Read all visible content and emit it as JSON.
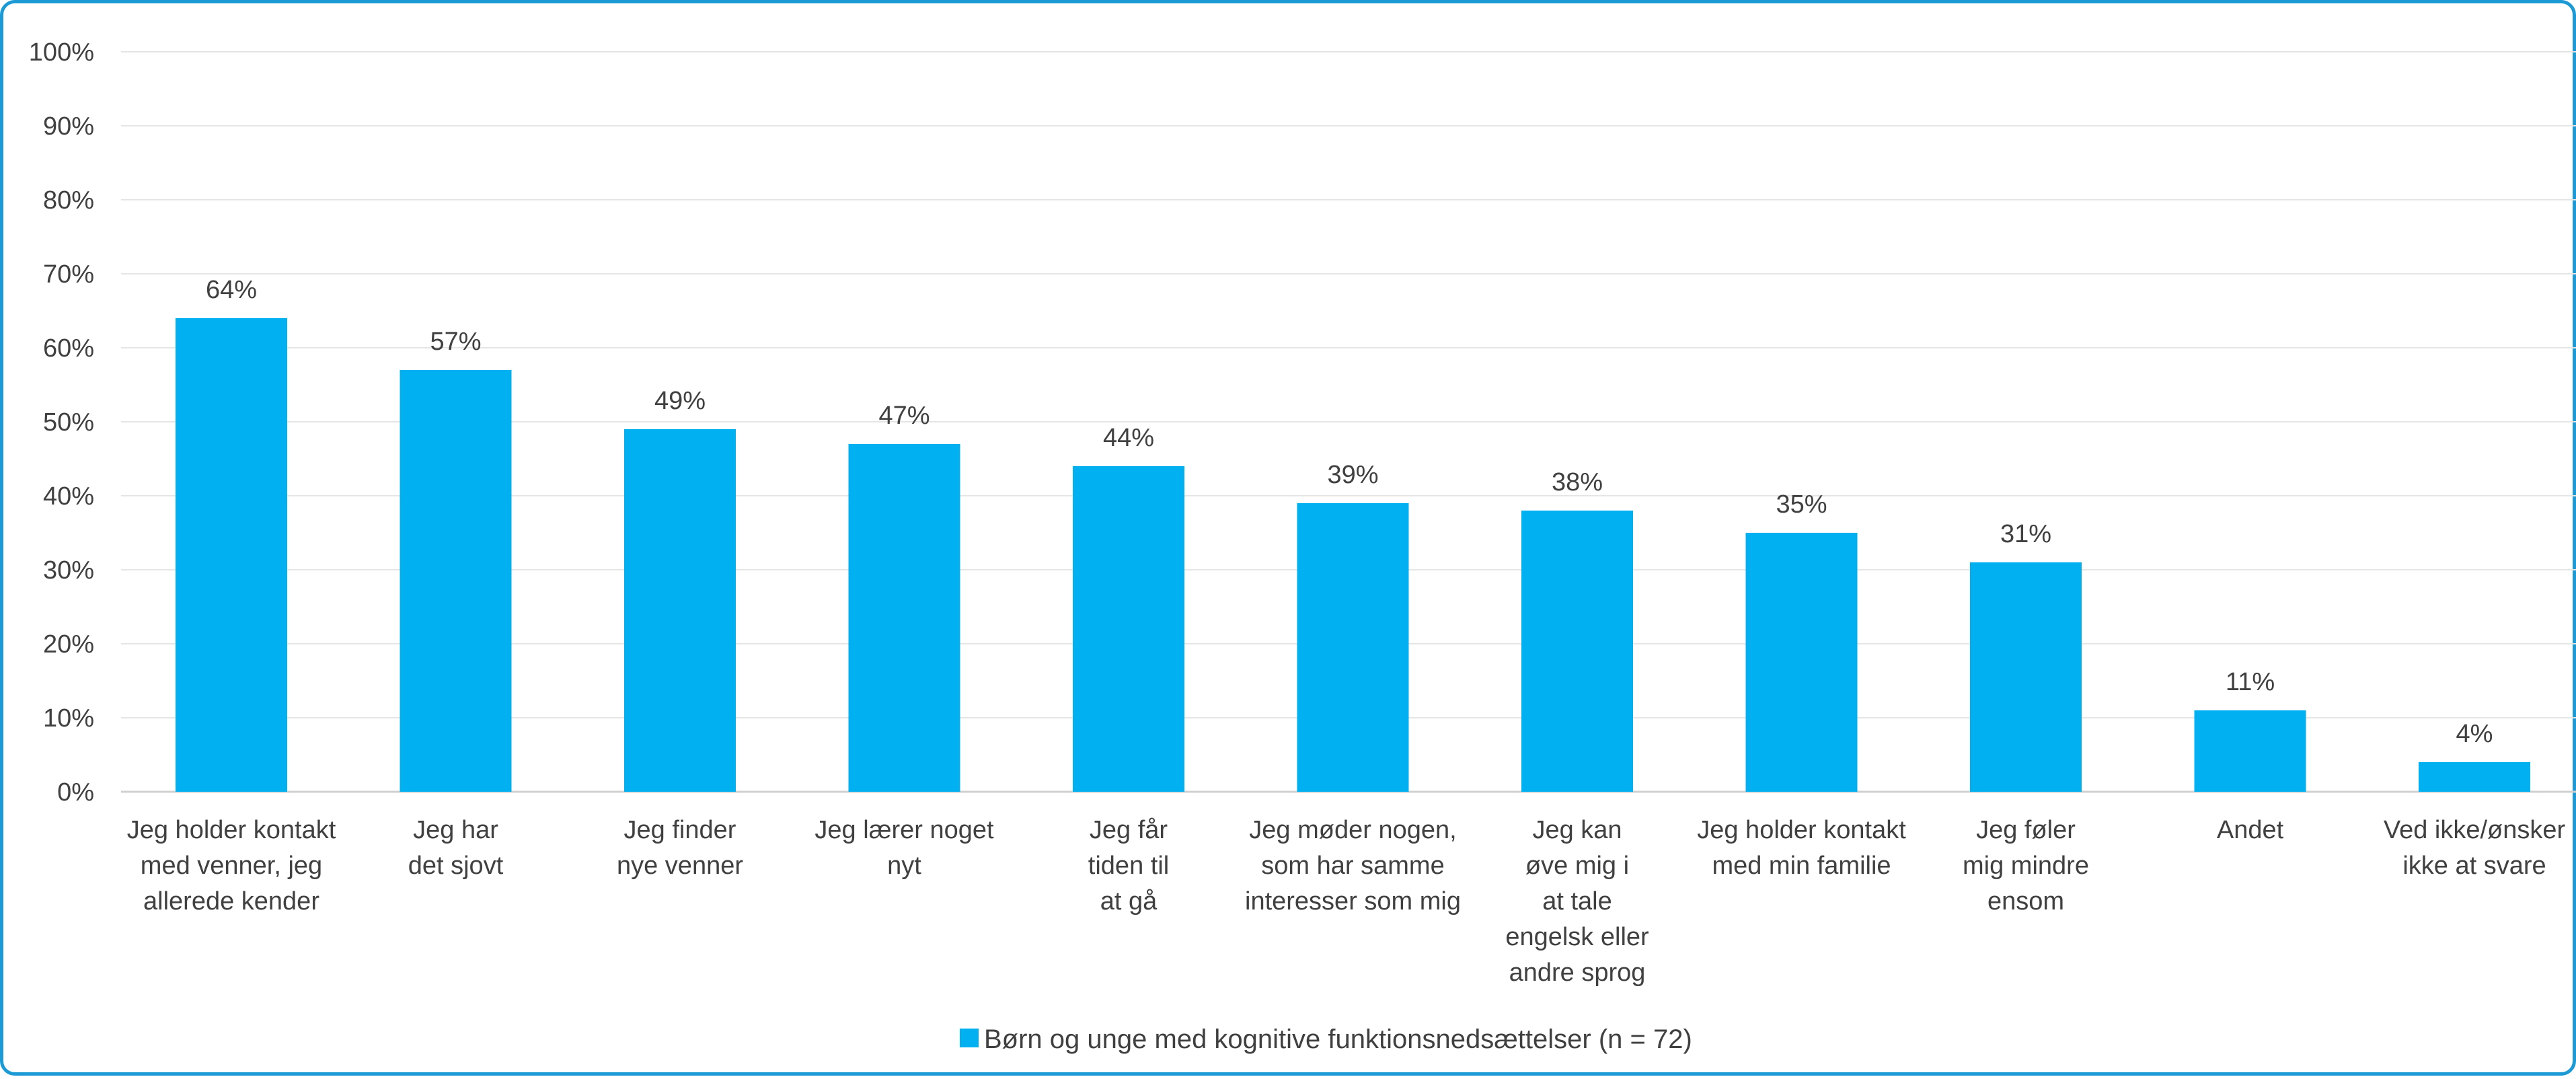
{
  "chart_data": {
    "type": "bar",
    "categories": [
      [
        "Jeg holder kontakt",
        "med venner, jeg",
        "allerede kender"
      ],
      [
        "Jeg har",
        "det sjovt"
      ],
      [
        "Jeg finder",
        "nye venner"
      ],
      [
        "Jeg lærer noget",
        "nyt"
      ],
      [
        "Jeg får",
        "tiden til",
        "at gå"
      ],
      [
        "Jeg møder nogen,",
        "som har samme",
        "interesser som mig"
      ],
      [
        "Jeg kan",
        "øve mig i",
        "at tale",
        "engelsk eller",
        "andre sprog"
      ],
      [
        "Jeg holder kontakt",
        "med min familie"
      ],
      [
        "Jeg føler",
        "mig mindre",
        "ensom"
      ],
      [
        "Andet"
      ],
      [
        "Ved ikke/ønsker",
        "ikke at svare"
      ]
    ],
    "series": [
      {
        "name": "Børn og unge med kognitive funktionsnedsættelser (n = 72)",
        "values": [
          64,
          57,
          49,
          47,
          44,
          39,
          38,
          35,
          31,
          11,
          4
        ],
        "data_labels": [
          "64%",
          "57%",
          "49%",
          "47%",
          "44%",
          "39%",
          "38%",
          "35%",
          "31%",
          "11%",
          "4%"
        ]
      }
    ],
    "ylim": [
      0,
      100
    ],
    "yticks": [
      "0%",
      "10%",
      "20%",
      "30%",
      "40%",
      "50%",
      "60%",
      "70%",
      "80%",
      "90%",
      "100%"
    ],
    "grid": true,
    "legend_position": "bottom",
    "colors": {
      "bar": "#00b0f0",
      "grid": "#e5e5e5",
      "axis": "#d0d0d0",
      "text": "#404040",
      "frame": "#1c9ad6"
    }
  }
}
